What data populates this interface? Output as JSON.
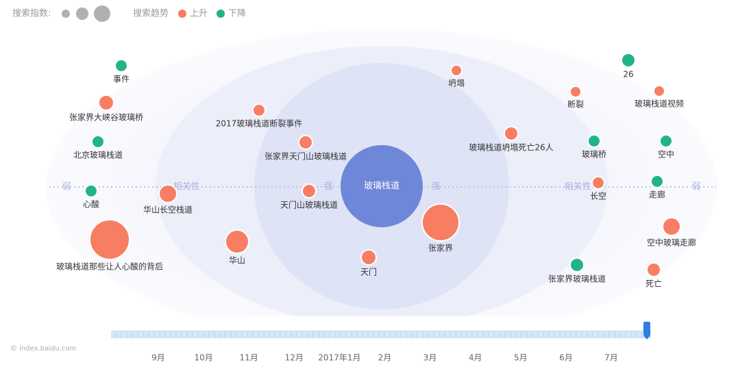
{
  "legend": {
    "size_label": "搜索指数:",
    "trend_label": "搜索趋势",
    "up": {
      "label": "上升",
      "color": "#f77e62"
    },
    "down": {
      "label": "下降",
      "color": "#22b38a"
    }
  },
  "center": {
    "label": "玻璃栈道",
    "color": "#6f87d8"
  },
  "axis_labels": {
    "weak_left": "弱",
    "relevance_left": "相关性",
    "strong_left": "强",
    "strong_right": "强",
    "relevance_right": "相关性",
    "weak_right": "弱"
  },
  "nodes": [
    {
      "label": "事件",
      "trend": "down"
    },
    {
      "label": "张家界大峡谷玻璃桥",
      "trend": "up"
    },
    {
      "label": "北京玻璃栈道",
      "trend": "down"
    },
    {
      "label": "心酸",
      "trend": "down"
    },
    {
      "label": "玻璃栈道那些让人心酸的背后",
      "trend": "up"
    },
    {
      "label": "华山长空栈道",
      "trend": "up"
    },
    {
      "label": "华山",
      "trend": "up"
    },
    {
      "label": "2017玻璃栈道断裂事件",
      "trend": "up"
    },
    {
      "label": "张家界天门山玻璃栈道",
      "trend": "up"
    },
    {
      "label": "天门山玻璃栈道",
      "trend": "up"
    },
    {
      "label": "天门",
      "trend": "up"
    },
    {
      "label": "张家界",
      "trend": "up"
    },
    {
      "label": "坍塌",
      "trend": "up"
    },
    {
      "label": "玻璃栈道坍塌死亡26人",
      "trend": "up"
    },
    {
      "label": "断裂",
      "trend": "up"
    },
    {
      "label": "玻璃桥",
      "trend": "down"
    },
    {
      "label": "长空",
      "trend": "up"
    },
    {
      "label": "张家界玻璃栈道",
      "trend": "down"
    },
    {
      "label": "26",
      "trend": "down"
    },
    {
      "label": "玻璃栈道视频",
      "trend": "up"
    },
    {
      "label": "空中",
      "trend": "down"
    },
    {
      "label": "走廊",
      "trend": "down"
    },
    {
      "label": "空中玻璃走廊",
      "trend": "up"
    },
    {
      "label": "死亡",
      "trend": "up"
    }
  ],
  "timeline": {
    "months": [
      "9月",
      "10月",
      "11月",
      "12月",
      "2017年1月",
      "2月",
      "3月",
      "4月",
      "5月",
      "6月",
      "7月"
    ]
  },
  "watermark": "© index.baidu.com"
}
